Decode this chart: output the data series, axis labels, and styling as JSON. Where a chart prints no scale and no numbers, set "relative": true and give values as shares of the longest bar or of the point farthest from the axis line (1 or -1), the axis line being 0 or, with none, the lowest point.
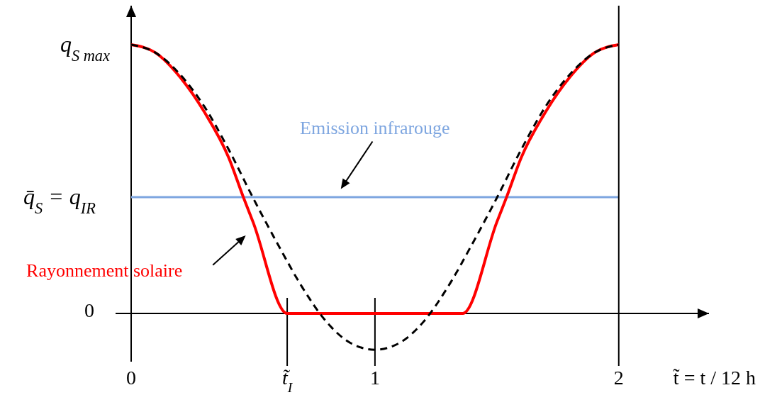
{
  "chart_data": {
    "type": "line",
    "relative": true,
    "xlabel": "t̃ = t / 12 h",
    "x": [
      0,
      0.1,
      0.2,
      0.3,
      0.4,
      0.46,
      0.5,
      0.64,
      1.36,
      1.5,
      1.54,
      1.6,
      1.7,
      1.8,
      1.9,
      2
    ],
    "xlim": [
      -0.064,
      2.37
    ],
    "xticks": [
      0,
      {
        "value": 0.64,
        "label": "t̃$_{I}$"
      },
      1,
      2
    ],
    "series": [
      {
        "name": "Rayonnement solaire",
        "color": "#ff0000",
        "line_style": "solid",
        "values": [
          1,
          0.97,
          0.88,
          0.75,
          0.58,
          0.433,
          0.34,
          0,
          0,
          0.34,
          0.433,
          0.58,
          0.75,
          0.88,
          0.97,
          1
        ]
      },
      {
        "color": "#000000",
        "line_style": "dashed",
        "x": [
          0,
          0.1,
          0.2,
          0.3,
          0.4,
          0.5,
          0.6,
          0.7,
          0.8,
          0.9,
          1,
          1.1,
          1.2,
          1.3,
          1.4,
          1.5,
          1.6,
          1.7,
          1.8,
          1.9,
          2
        ],
        "values": [
          1,
          0.97,
          0.89,
          0.77,
          0.61,
          0.43,
          0.26,
          0.1,
          -0.03,
          -0.11,
          -0.135,
          -0.11,
          -0.03,
          0.1,
          0.26,
          0.43,
          0.61,
          0.77,
          0.89,
          0.97,
          1
        ]
      }
    ],
    "ref_lines": [
      {
        "axis": "y",
        "value": 0.433,
        "label": "q̄$_{S}$ = q$_{IR}$",
        "color": "#7ea6e0"
      },
      {
        "axis": "x",
        "value": 0.64,
        "color": "#000000"
      },
      {
        "axis": "x",
        "value": 1,
        "color": "#000000"
      },
      {
        "axis": "x",
        "value": 2,
        "color": "#000000"
      }
    ],
    "annotations": [
      "q$_{S max}$",
      "0",
      "Emission infrarouge"
    ],
    "legend": false
  }
}
